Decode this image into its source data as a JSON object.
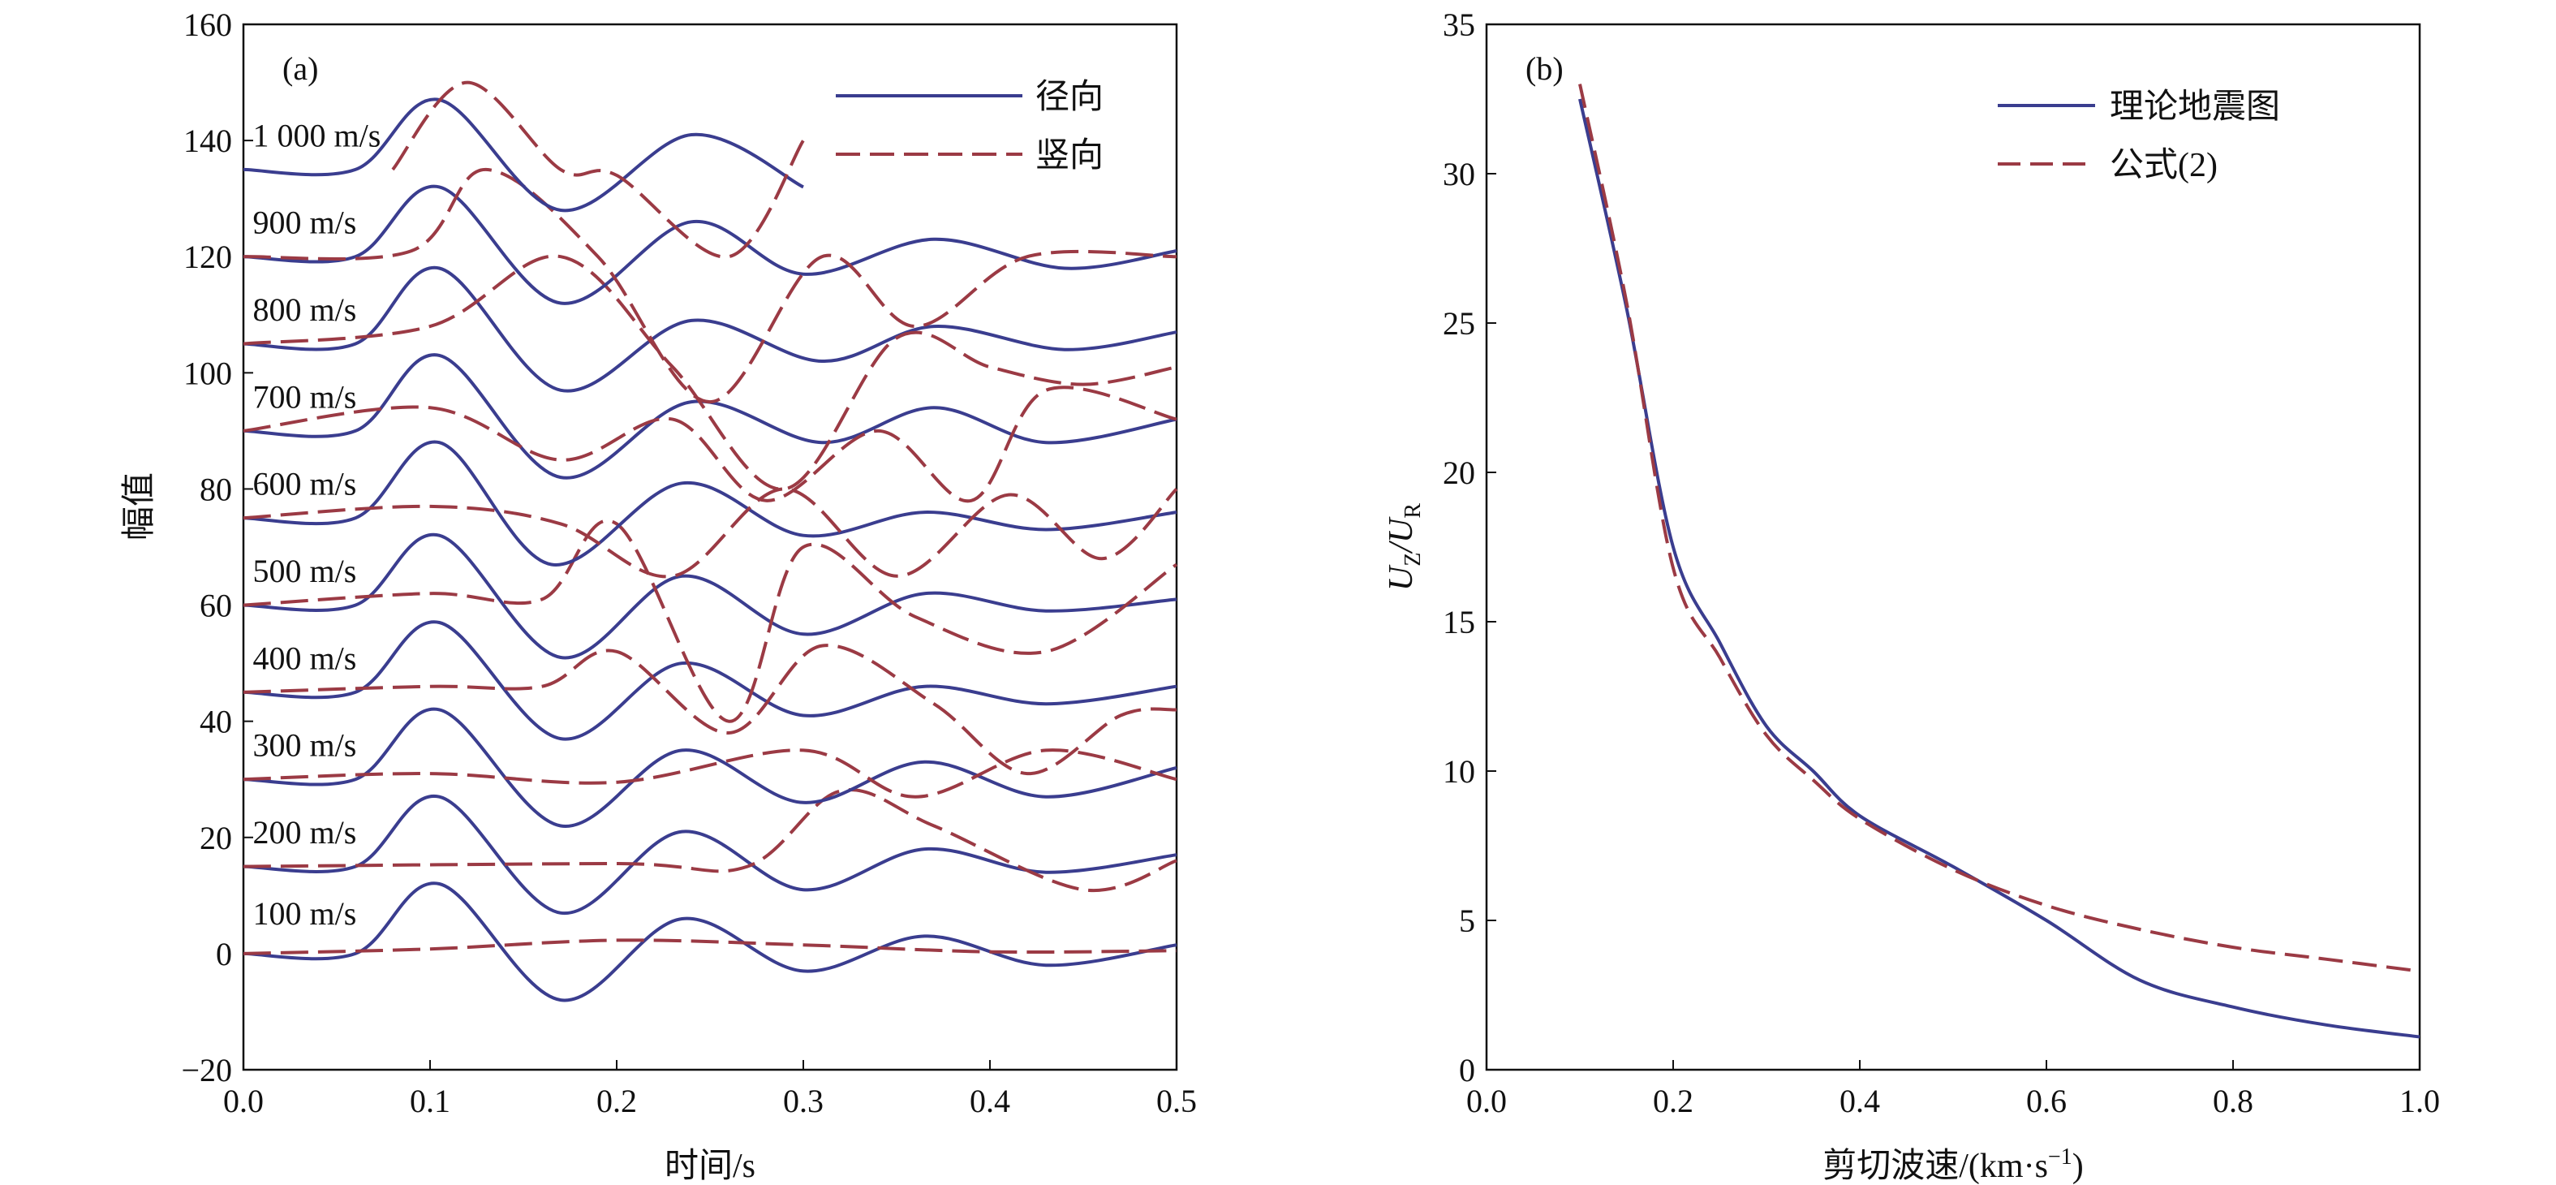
{
  "colors": {
    "radial": "#3a3d8f",
    "vertical": "#9b3a44",
    "axis": "#111111"
  },
  "chart_data": [
    {
      "type": "line",
      "panel_label": "(a)",
      "xlabel": "时间/s",
      "ylabel": "幅值",
      "xlim": [
        0,
        0.5
      ],
      "ylim": [
        -20,
        160
      ],
      "xticks": [
        0.0,
        0.1,
        0.2,
        0.3,
        0.4,
        0.5
      ],
      "xtick_labels": [
        "0.0",
        "0.1",
        "0.2",
        "0.3",
        "0.4",
        "0.5"
      ],
      "yticks": [
        -20,
        0,
        20,
        40,
        60,
        80,
        100,
        120,
        140,
        160
      ],
      "ytick_labels": [
        "−20",
        "0",
        "20",
        "40",
        "60",
        "80",
        "100",
        "120",
        "140",
        "160"
      ],
      "legend": {
        "placement": "top-right",
        "entries": [
          {
            "label": "径向",
            "style": "solid"
          },
          {
            "label": "竖向",
            "style": "dashed"
          }
        ]
      },
      "traces": [
        {
          "label": "100 m/s",
          "offset": 0,
          "label_y": 5,
          "x_end": 0.5,
          "radial": [
            [
              0,
              0
            ],
            [
              0.06,
              0
            ],
            [
              0.105,
              12
            ],
            [
              0.17,
              -8
            ],
            [
              0.235,
              6
            ],
            [
              0.3,
              -3
            ],
            [
              0.365,
              3
            ],
            [
              0.43,
              -2
            ],
            [
              0.5,
              1.5
            ]
          ],
          "vertical": [
            [
              0,
              0
            ],
            [
              0.1,
              0.8
            ],
            [
              0.2,
              2.3
            ],
            [
              0.3,
              1.5
            ],
            [
              0.4,
              0.3
            ],
            [
              0.5,
              0.5
            ]
          ]
        },
        {
          "label": "200 m/s",
          "offset": 15,
          "label_y": 19,
          "x_end": 0.5,
          "radial": [
            [
              0,
              15
            ],
            [
              0.06,
              15
            ],
            [
              0.105,
              27
            ],
            [
              0.17,
              7
            ],
            [
              0.235,
              21
            ],
            [
              0.3,
              11
            ],
            [
              0.365,
              18
            ],
            [
              0.43,
              14
            ],
            [
              0.5,
              17
            ]
          ],
          "vertical": [
            [
              0,
              15
            ],
            [
              0.2,
              15.5
            ],
            [
              0.27,
              15
            ],
            [
              0.32,
              28
            ],
            [
              0.37,
              22
            ],
            [
              0.45,
              11
            ],
            [
              0.5,
              16
            ]
          ]
        },
        {
          "label": "300 m/s",
          "offset": 30,
          "label_y": 34,
          "x_end": 0.5,
          "radial": [
            [
              0,
              30
            ],
            [
              0.06,
              30
            ],
            [
              0.105,
              42
            ],
            [
              0.17,
              22
            ],
            [
              0.235,
              35
            ],
            [
              0.3,
              26
            ],
            [
              0.365,
              33
            ],
            [
              0.43,
              27
            ],
            [
              0.5,
              32
            ]
          ],
          "vertical": [
            [
              0,
              30
            ],
            [
              0.1,
              31
            ],
            [
              0.2,
              29.5
            ],
            [
              0.3,
              35
            ],
            [
              0.36,
              27
            ],
            [
              0.43,
              35
            ],
            [
              0.5,
              30
            ]
          ]
        },
        {
          "label": "400 m/s",
          "offset": 45,
          "label_y": 49,
          "x_end": 0.5,
          "radial": [
            [
              0,
              45
            ],
            [
              0.06,
              45
            ],
            [
              0.105,
              57
            ],
            [
              0.17,
              37
            ],
            [
              0.235,
              50
            ],
            [
              0.3,
              41
            ],
            [
              0.365,
              46
            ],
            [
              0.43,
              43
            ],
            [
              0.5,
              46
            ]
          ],
          "vertical": [
            [
              0,
              45
            ],
            [
              0.1,
              46
            ],
            [
              0.16,
              46
            ],
            [
              0.2,
              52
            ],
            [
              0.26,
              38
            ],
            [
              0.31,
              53
            ],
            [
              0.37,
              43
            ],
            [
              0.42,
              31
            ],
            [
              0.47,
              41
            ],
            [
              0.5,
              42
            ]
          ]
        },
        {
          "label": "500 m/s",
          "offset": 60,
          "label_y": 64,
          "x_end": 0.5,
          "radial": [
            [
              0,
              60
            ],
            [
              0.06,
              60
            ],
            [
              0.105,
              72
            ],
            [
              0.17,
              51
            ],
            [
              0.235,
              65
            ],
            [
              0.3,
              55
            ],
            [
              0.365,
              62
            ],
            [
              0.43,
              59
            ],
            [
              0.5,
              61
            ]
          ],
          "vertical": [
            [
              0,
              60
            ],
            [
              0.1,
              62
            ],
            [
              0.16,
              61
            ],
            [
              0.2,
              74
            ],
            [
              0.26,
              40
            ],
            [
              0.3,
              70
            ],
            [
              0.36,
              58
            ],
            [
              0.43,
              52
            ],
            [
              0.5,
              67
            ]
          ]
        },
        {
          "label": "600 m/s",
          "offset": 75,
          "label_y": 79,
          "x_end": 0.5,
          "radial": [
            [
              0,
              75
            ],
            [
              0.06,
              75
            ],
            [
              0.105,
              88
            ],
            [
              0.165,
              67
            ],
            [
              0.235,
              81
            ],
            [
              0.3,
              72
            ],
            [
              0.365,
              76
            ],
            [
              0.43,
              73
            ],
            [
              0.5,
              76
            ]
          ],
          "vertical": [
            [
              0,
              75
            ],
            [
              0.1,
              77
            ],
            [
              0.17,
              74
            ],
            [
              0.23,
              65
            ],
            [
              0.29,
              80
            ],
            [
              0.35,
              65
            ],
            [
              0.41,
              79
            ],
            [
              0.46,
              68
            ],
            [
              0.5,
              80
            ]
          ]
        },
        {
          "label": "700 m/s",
          "offset": 90,
          "label_y": 94,
          "x_end": 0.5,
          "radial": [
            [
              0,
              90
            ],
            [
              0.06,
              90
            ],
            [
              0.105,
              103
            ],
            [
              0.17,
              82
            ],
            [
              0.24,
              95
            ],
            [
              0.31,
              88
            ],
            [
              0.37,
              94
            ],
            [
              0.43,
              88
            ],
            [
              0.5,
              92
            ]
          ],
          "vertical": [
            [
              0,
              90
            ],
            [
              0.1,
              94
            ],
            [
              0.17,
              85
            ],
            [
              0.23,
              92
            ],
            [
              0.28,
              78
            ],
            [
              0.34,
              90
            ],
            [
              0.39,
              78
            ],
            [
              0.43,
              97
            ],
            [
              0.5,
              92
            ]
          ]
        },
        {
          "label": "800 m/s",
          "offset": 105,
          "label_y": 109,
          "x_end": 0.5,
          "radial": [
            [
              0,
              105
            ],
            [
              0.06,
              105
            ],
            [
              0.105,
              118
            ],
            [
              0.17,
              97
            ],
            [
              0.24,
              109
            ],
            [
              0.31,
              102
            ],
            [
              0.37,
              108
            ],
            [
              0.44,
              104
            ],
            [
              0.5,
              107
            ]
          ],
          "vertical": [
            [
              0,
              105
            ],
            [
              0.1,
              108
            ],
            [
              0.17,
              120
            ],
            [
              0.23,
              101
            ],
            [
              0.29,
              80
            ],
            [
              0.35,
              106
            ],
            [
              0.4,
              101
            ],
            [
              0.45,
              98
            ],
            [
              0.5,
              101
            ]
          ]
        },
        {
          "label": "900 m/s",
          "offset": 120,
          "label_y": 124,
          "x_end": 0.5,
          "radial": [
            [
              0,
              120
            ],
            [
              0.06,
              120
            ],
            [
              0.105,
              132
            ],
            [
              0.17,
              112
            ],
            [
              0.24,
              126
            ],
            [
              0.3,
              117
            ],
            [
              0.37,
              123
            ],
            [
              0.44,
              118
            ],
            [
              0.5,
              121
            ]
          ],
          "vertical": [
            [
              0,
              120
            ],
            [
              0.09,
              121
            ],
            [
              0.13,
              135
            ],
            [
              0.19,
              120
            ],
            [
              0.25,
              95
            ],
            [
              0.31,
              120
            ],
            [
              0.36,
              108
            ],
            [
              0.42,
              120
            ],
            [
              0.5,
              120
            ]
          ]
        },
        {
          "label": "1 000 m/s",
          "offset": 135,
          "label_y": 139,
          "x_end": 0.3,
          "radial": [
            [
              0,
              135
            ],
            [
              0.06,
              135
            ],
            [
              0.105,
              147
            ],
            [
              0.17,
              128
            ],
            [
              0.24,
              141
            ],
            [
              0.3,
              132
            ]
          ],
          "vertical": [
            [
              0.08,
              135
            ],
            [
              0.12,
              150
            ],
            [
              0.17,
              135
            ],
            [
              0.2,
              134
            ],
            [
              0.26,
              120
            ],
            [
              0.3,
              140
            ]
          ]
        }
      ]
    },
    {
      "type": "line",
      "panel_label": "(b)",
      "xlabel": "剪切波速/(km·s",
      "xlabel_sup": "−1",
      "xlabel_end": ")",
      "ylabel_main": "U",
      "ylabel_sub1": "Z",
      "ylabel_sep": "/U",
      "ylabel_sub2": "R",
      "xlim": [
        0,
        1.0
      ],
      "ylim": [
        0,
        35
      ],
      "xticks": [
        0.0,
        0.2,
        0.4,
        0.6,
        0.8,
        1.0
      ],
      "xtick_labels": [
        "0.0",
        "0.2",
        "0.4",
        "0.6",
        "0.8",
        "1.0"
      ],
      "yticks": [
        0,
        5,
        10,
        15,
        20,
        25,
        30,
        35
      ],
      "ytick_labels": [
        "0",
        "5",
        "10",
        "15",
        "20",
        "25",
        "30",
        "35"
      ],
      "legend": {
        "placement": "top-right",
        "entries": [
          {
            "label": "理论地震图",
            "style": "solid"
          },
          {
            "label": "公式(2)",
            "style": "dashed"
          }
        ]
      },
      "series": [
        {
          "name": "理论地震图",
          "style": "solid",
          "x": [
            0.1,
            0.15,
            0.2,
            0.25,
            0.3,
            0.35,
            0.4,
            0.5,
            0.6,
            0.7,
            0.8,
            0.9,
            1.0
          ],
          "y": [
            32.5,
            25.5,
            17.5,
            14.3,
            11.5,
            10.0,
            8.5,
            6.8,
            5.0,
            3.0,
            2.1,
            1.5,
            1.1
          ]
        },
        {
          "name": "公式(2)",
          "style": "dashed",
          "x": [
            0.1,
            0.15,
            0.2,
            0.25,
            0.3,
            0.35,
            0.4,
            0.5,
            0.6,
            0.7,
            0.8,
            0.9,
            1.0
          ],
          "y": [
            33.0,
            25.7,
            16.8,
            13.8,
            11.2,
            9.7,
            8.4,
            6.7,
            5.5,
            4.7,
            4.1,
            3.7,
            3.3
          ]
        }
      ]
    }
  ]
}
